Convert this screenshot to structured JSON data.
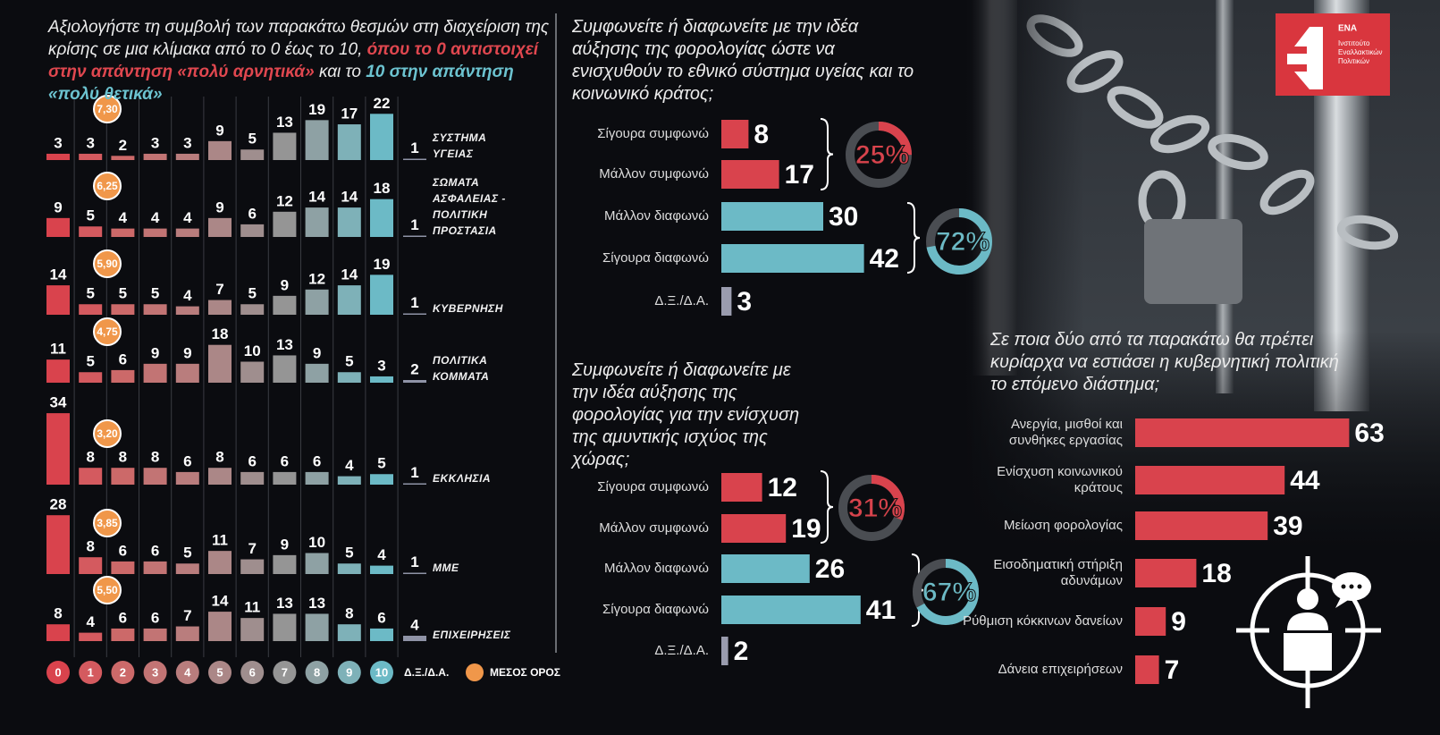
{
  "logo": {
    "name": "ΕΝΑ",
    "subtitle": "Ινστιτούτο Εναλλακτικών Πολιτικών"
  },
  "chart_data": [
    {
      "type": "bar",
      "title": "Αξιολογήστε τη συμβολή των παρακάτω θεσμών στη διαχείριση της κρίσης σε μια κλίμακα από το 0 έως το 10,",
      "title_negative": "όπου το 0 αντιστοιχεί στην απάντηση «πολύ αρνητικά»",
      "title_join": "και το",
      "title_positive": "10 στην απάντηση «πολύ θετικά»",
      "categories": [
        "0",
        "1",
        "2",
        "3",
        "4",
        "5",
        "6",
        "7",
        "8",
        "9",
        "10",
        "Δ.Ξ./Δ.Α."
      ],
      "colors": [
        "#d9434d",
        "#d45a5f",
        "#cc6969",
        "#c27474",
        "#b97d7d",
        "#ab8787",
        "#9f8e8e",
        "#959595",
        "#8ea1a4",
        "#7eb1b8",
        "#6cbac6",
        "#8f93a6"
      ],
      "mean_legend": "ΜΕΣΟΣ ΟΡΟΣ",
      "mean_color": "#f0974a",
      "series": [
        {
          "name": "ΣΥΣΤΗΜΑ ΥΓΕΙΑΣ",
          "values": [
            3,
            3,
            2,
            3,
            3,
            9,
            5,
            13,
            19,
            17,
            22,
            1
          ],
          "mean": 7.3,
          "mean_label": "7,30"
        },
        {
          "name": "ΣΩΜΑΤΑ ΑΣΦΑΛΕΙΑΣ - ΠΟΛΙΤΙΚΗ ΠΡΟΣΤΑΣΙΑ",
          "values": [
            9,
            5,
            4,
            4,
            4,
            9,
            6,
            12,
            14,
            14,
            18,
            1
          ],
          "mean": 6.25,
          "mean_label": "6,25"
        },
        {
          "name": "ΚΥΒΕΡΝΗΣΗ",
          "values": [
            14,
            5,
            5,
            5,
            4,
            7,
            5,
            9,
            12,
            14,
            19,
            1
          ],
          "mean": 5.9,
          "mean_label": "5,90"
        },
        {
          "name": "ΠΟΛΙΤΙΚΑ ΚΟΜΜΑΤΑ",
          "values": [
            11,
            5,
            6,
            9,
            9,
            18,
            10,
            13,
            9,
            5,
            3,
            2
          ],
          "mean": 4.75,
          "mean_label": "4,75"
        },
        {
          "name": "ΕΚΚΛΗΣΙΑ",
          "values": [
            34,
            8,
            8,
            8,
            6,
            8,
            6,
            6,
            6,
            4,
            5,
            1
          ],
          "mean": 3.2,
          "mean_label": "3,20"
        },
        {
          "name": "ΜΜΕ",
          "values": [
            28,
            8,
            6,
            6,
            5,
            11,
            7,
            9,
            10,
            5,
            4,
            1
          ],
          "mean": 3.85,
          "mean_label": "3,85"
        },
        {
          "name": "ΕΠΙΧΕΙΡΗΣΕΙΣ",
          "values": [
            8,
            4,
            6,
            6,
            7,
            14,
            11,
            13,
            13,
            8,
            6,
            4
          ],
          "mean": 5.5,
          "mean_label": "5,50"
        }
      ]
    },
    {
      "type": "hbar",
      "title": "Συμφωνείτε ή διαφωνείτε με την ιδέα αύξησης της φορολογίας ώστε να ενισχυθούν το εθνικό σύστημα υγείας και το κοινωνικό κράτος;",
      "categories": [
        "Σίγουρα συμφωνώ",
        "Μάλλον συμφωνώ",
        "Μάλλον διαφωνώ",
        "Σίγουρα διαφωνώ",
        "Δ.Ξ./Δ.Α."
      ],
      "values": [
        8,
        17,
        30,
        42,
        3
      ],
      "colors": [
        "#d9434d",
        "#d9434d",
        "#6cbac6",
        "#6cbac6",
        "#9a9cae"
      ],
      "summary_values": [
        25,
        72
      ],
      "summary_labels": [
        "25%",
        "72%"
      ],
      "summary_colors": [
        "#d9434d",
        "#6cbac6"
      ]
    },
    {
      "type": "hbar",
      "title": "Συμφωνείτε ή διαφωνείτε με την ιδέα αύξησης της φορολογίας για την ενίσχυση της αμυντικής ισχύος της χώρας;",
      "categories": [
        "Σίγουρα συμφωνώ",
        "Μάλλον συμφωνώ",
        "Μάλλον διαφωνώ",
        "Σίγουρα διαφωνώ",
        "Δ.Ξ./Δ.Α."
      ],
      "values": [
        12,
        19,
        26,
        41,
        2
      ],
      "colors": [
        "#d9434d",
        "#d9434d",
        "#6cbac6",
        "#6cbac6",
        "#9a9cae"
      ],
      "summary_values": [
        31,
        67
      ],
      "summary_labels": [
        "31%",
        "67%"
      ],
      "summary_colors": [
        "#d9434d",
        "#6cbac6"
      ]
    },
    {
      "type": "hbar",
      "title": "Σε ποια δύο από τα παρακάτω θα πρέπει κυρίαρχα να εστιάσει η κυβερνητική πολιτική το επόμενο διάστημα;",
      "categories": [
        "Ανεργία, μισθοί και συνθήκες εργασίας",
        "Ενίσχυση κοινωνικού κράτους",
        "Μείωση φορολογίας",
        "Εισοδηματική στήριξη αδυνάμων",
        "Ρύθμιση κόκκινων δανείων",
        "Δάνεια επιχειρήσεων"
      ],
      "values": [
        63,
        44,
        39,
        18,
        9,
        7
      ],
      "color": "#d9434d"
    }
  ]
}
